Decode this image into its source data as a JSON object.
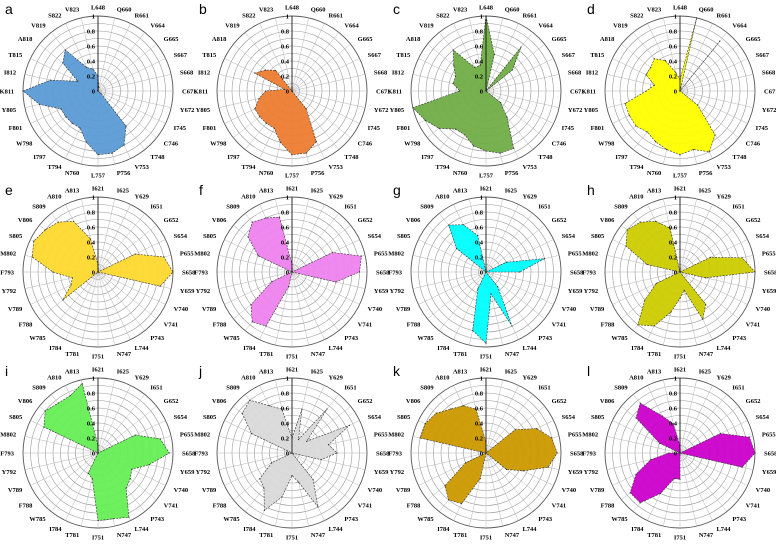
{
  "panels": [
    {
      "label": "a",
      "color": "#5b9bd5",
      "residues": [
        "L648",
        "Q660",
        "R661",
        "V664",
        "G665",
        "S667",
        "S668",
        "C671",
        "Y672",
        "I745",
        "C746",
        "T748",
        "V753",
        "P756",
        "L757",
        "N760",
        "T794",
        "I797",
        "W798",
        "F801",
        "Y805",
        "K811",
        "I812",
        "T815",
        "A818",
        "V819",
        "S822",
        "V823"
      ],
      "values": [
        0.2,
        0.05,
        0,
        0,
        0,
        0,
        0,
        0,
        0,
        0,
        0.05,
        0.6,
        0.8,
        0.85,
        0.85,
        0.7,
        0.55,
        0.55,
        0.55,
        0.55,
        0.8,
        1,
        0.65,
        0.3,
        0.6,
        0.7,
        0.35,
        0.3
      ]
    },
    {
      "label": "b",
      "color": "#ed7d31",
      "residues": [
        "L648",
        "Q660",
        "R661",
        "V664",
        "G665",
        "S667",
        "S668",
        "C671",
        "Y672",
        "I745",
        "C746",
        "T748",
        "V753",
        "P756",
        "L757",
        "N760",
        "T794",
        "I797",
        "W798",
        "F801",
        "Y805",
        "K811",
        "I812",
        "T815",
        "A818",
        "V819",
        "S822",
        "V823"
      ],
      "values": [
        0,
        0,
        0,
        0,
        0,
        0,
        0,
        0,
        0,
        0,
        0,
        0.3,
        0.75,
        0.85,
        0.85,
        0.7,
        0.55,
        0.55,
        0.55,
        0.55,
        0.45,
        0.35,
        0.1,
        0.55,
        0.45,
        0.35,
        0,
        0
      ]
    },
    {
      "label": "c",
      "color": "#70ad47",
      "residues": [
        "L648",
        "Q660",
        "R661",
        "V664",
        "G665",
        "S667",
        "S668",
        "C671",
        "Y672",
        "I745",
        "C746",
        "T748",
        "V753",
        "P756",
        "L757",
        "N760",
        "T794",
        "I797",
        "W798",
        "F801",
        "Y805",
        "K811",
        "I812",
        "T815",
        "A818",
        "V819",
        "S822",
        "V823"
      ],
      "values": [
        1,
        0.5,
        0,
        0.75,
        0.45,
        0,
        0,
        0,
        0,
        0,
        0.25,
        0.45,
        0.85,
        0.85,
        0.8,
        0.75,
        0.65,
        0.65,
        0.8,
        0.9,
        1,
        0.35,
        0.45,
        0.45,
        0.55,
        0.7,
        0.35,
        0.35
      ]
    },
    {
      "label": "d",
      "color": "#ffff00",
      "residues": [
        "L648",
        "Q660",
        "R661",
        "V664",
        "G665",
        "S667",
        "S668",
        "C671",
        "Y672",
        "I745",
        "C746",
        "T748",
        "V753",
        "P756",
        "L757",
        "N760",
        "T794",
        "I797",
        "W798",
        "F801",
        "Y805",
        "K811",
        "I812",
        "T815",
        "A818",
        "V819",
        "S822",
        "V823"
      ],
      "values": [
        0.15,
        1,
        0,
        0.85,
        0,
        0,
        0,
        0,
        0,
        0,
        0.3,
        0.75,
        0.9,
        0.8,
        0.85,
        0.8,
        0.75,
        0.7,
        0.75,
        0.75,
        0.75,
        0.45,
        0.35,
        0.5,
        0.5,
        0.55,
        0.45,
        0.25
      ]
    },
    {
      "label": "e",
      "color": "#ffd92f",
      "residues": [
        "I621",
        "I625",
        "Y629",
        "I651",
        "G652",
        "S654",
        "P655",
        "S658",
        "Y659",
        "V740",
        "V741",
        "P743",
        "L744",
        "N747",
        "I751",
        "T781",
        "I784",
        "W785",
        "F788",
        "V789",
        "Y792",
        "F793",
        "M802",
        "S805",
        "V806",
        "S809",
        "A810",
        "A813"
      ],
      "values": [
        0.1,
        0,
        0,
        0,
        0,
        0.55,
        0.9,
        1,
        0.85,
        0,
        0,
        0,
        0,
        0,
        0,
        0,
        0,
        0,
        0.6,
        0.4,
        0.35,
        0.6,
        0.9,
        0.95,
        0.9,
        0.85,
        0.75,
        0.45
      ]
    },
    {
      "label": "f",
      "color": "#ee82ee",
      "residues": [
        "I621",
        "I625",
        "Y629",
        "I651",
        "G652",
        "S654",
        "P655",
        "S658",
        "Y659",
        "V740",
        "V741",
        "P743",
        "L744",
        "N747",
        "I751",
        "T781",
        "I784",
        "W785",
        "F788",
        "V789",
        "Y792",
        "F793",
        "M802",
        "S805",
        "V806",
        "S809",
        "A810",
        "A813"
      ],
      "values": [
        0.1,
        0,
        0,
        0,
        0,
        0.6,
        0.95,
        0.9,
        0.6,
        0,
        0,
        0,
        0,
        0,
        0,
        0.2,
        0.8,
        0.85,
        0.7,
        0.3,
        0,
        0,
        0,
        0.5,
        0.75,
        0.85,
        0.8,
        0.75
      ]
    },
    {
      "label": "g",
      "color": "#00ffff",
      "residues": [
        "I621",
        "I625",
        "Y629",
        "I651",
        "G652",
        "S654",
        "P655",
        "S658",
        "Y659",
        "V740",
        "V741",
        "P743",
        "L744",
        "N747",
        "I751",
        "T781",
        "I784",
        "W785",
        "F788",
        "V789",
        "Y792",
        "F793",
        "M802",
        "S805",
        "V806",
        "S809",
        "A810",
        "A813"
      ],
      "values": [
        0,
        0,
        0,
        0,
        0,
        0.3,
        0.8,
        0.45,
        0,
        0,
        0,
        0.25,
        0.8,
        0.3,
        0.95,
        0.8,
        0.25,
        0,
        0,
        0,
        0,
        0,
        0,
        0,
        0.5,
        0.8,
        0.7,
        0.5
      ]
    },
    {
      "label": "h",
      "color": "#cccc00",
      "residues": [
        "I621",
        "I625",
        "Y629",
        "I651",
        "G652",
        "S654",
        "P655",
        "S658",
        "Y659",
        "V740",
        "V741",
        "P743",
        "L744",
        "N747",
        "I751",
        "T781",
        "I784",
        "W785",
        "F788",
        "V789",
        "Y792",
        "F793",
        "M802",
        "S805",
        "V806",
        "S809",
        "A810",
        "A813"
      ],
      "values": [
        0,
        0,
        0,
        0,
        0,
        0.45,
        0.85,
        1,
        0.35,
        0,
        0,
        0.55,
        0.7,
        0.25,
        0.35,
        0.55,
        0.8,
        0.9,
        0.6,
        0.35,
        0,
        0,
        0.45,
        0.8,
        0.9,
        0.85,
        0.75,
        0.6
      ]
    },
    {
      "label": "i",
      "color": "#66ee55",
      "residues": [
        "I621",
        "I625",
        "Y629",
        "I651",
        "G652",
        "S654",
        "P655",
        "S658",
        "Y659",
        "V740",
        "V741",
        "P743",
        "L744",
        "N747",
        "I751",
        "T781",
        "I784",
        "W785",
        "F788",
        "V789",
        "Y792",
        "F793",
        "M802",
        "S805",
        "V806",
        "S809",
        "A810",
        "A813"
      ],
      "values": [
        0.1,
        0,
        0,
        0,
        0,
        0.55,
        0.85,
        0.95,
        0.7,
        0.5,
        0.55,
        0.6,
        0.95,
        0.9,
        0.9,
        0.35,
        0.3,
        0,
        0,
        0,
        0,
        0,
        0,
        0.8,
        0.9,
        0.85,
        0.85,
        0.95
      ]
    },
    {
      "label": "j",
      "color": "#d9d9d9",
      "residues": [
        "I621",
        "I625",
        "Y629",
        "I651",
        "G652",
        "S654",
        "P655",
        "S658",
        "Y659",
        "V740",
        "V741",
        "P743",
        "L744",
        "N747",
        "I751",
        "T781",
        "I784",
        "W785",
        "F788",
        "V789",
        "Y792",
        "F793",
        "M802",
        "S805",
        "V806",
        "S809",
        "A810",
        "A813"
      ],
      "values": [
        0.2,
        0.6,
        0.2,
        0.75,
        0.25,
        0.85,
        0.5,
        0.6,
        0.4,
        0,
        0,
        0.45,
        0.8,
        0.4,
        0.3,
        0.6,
        0.85,
        0.6,
        0.55,
        0.3,
        0,
        0,
        0,
        0.6,
        0.85,
        0.9,
        0.7,
        0.6
      ]
    },
    {
      "label": "k",
      "color": "#cc9900",
      "residues": [
        "I621",
        "I625",
        "Y629",
        "I651",
        "G652",
        "S654",
        "P655",
        "S658",
        "Y659",
        "V740",
        "V741",
        "P743",
        "L744",
        "N747",
        "I751",
        "T781",
        "I784",
        "W785",
        "F788",
        "V789",
        "Y792",
        "F793",
        "M802",
        "S805",
        "V806",
        "S809",
        "A810",
        "A813"
      ],
      "values": [
        0.15,
        0,
        0,
        0,
        0.5,
        0.75,
        0.9,
        0.95,
        0.85,
        0.55,
        0.35,
        0,
        0,
        0,
        0,
        0.35,
        0.75,
        0.8,
        0.7,
        0.3,
        0,
        0,
        0.9,
        0.9,
        0.85,
        0.75,
        0.7,
        0.6
      ]
    },
    {
      "label": "l",
      "color": "#cc00cc",
      "residues": [
        "I621",
        "I625",
        "Y629",
        "I651",
        "G652",
        "S654",
        "P655",
        "S658",
        "Y659",
        "V740",
        "V741",
        "P743",
        "L744",
        "N747",
        "I751",
        "T781",
        "I784",
        "W785",
        "F788",
        "V789",
        "Y792",
        "F793",
        "M802",
        "S805",
        "V806",
        "S809",
        "A810",
        "A813"
      ],
      "values": [
        0.1,
        0,
        0,
        0,
        0,
        0.6,
        0.95,
        1,
        0.85,
        0,
        0,
        0,
        0,
        0,
        0.35,
        0.35,
        0.6,
        0.85,
        0.85,
        0.65,
        0.4,
        0.15,
        0,
        0.3,
        0.75,
        0.85,
        0.55,
        0.4
      ]
    }
  ],
  "chart_data": {
    "type": "radar",
    "radial_ticks": [
      "0",
      "0.2",
      "0.4",
      "0.6",
      "0.8",
      "1"
    ],
    "rlim": [
      0,
      1
    ],
    "grid": true
  }
}
